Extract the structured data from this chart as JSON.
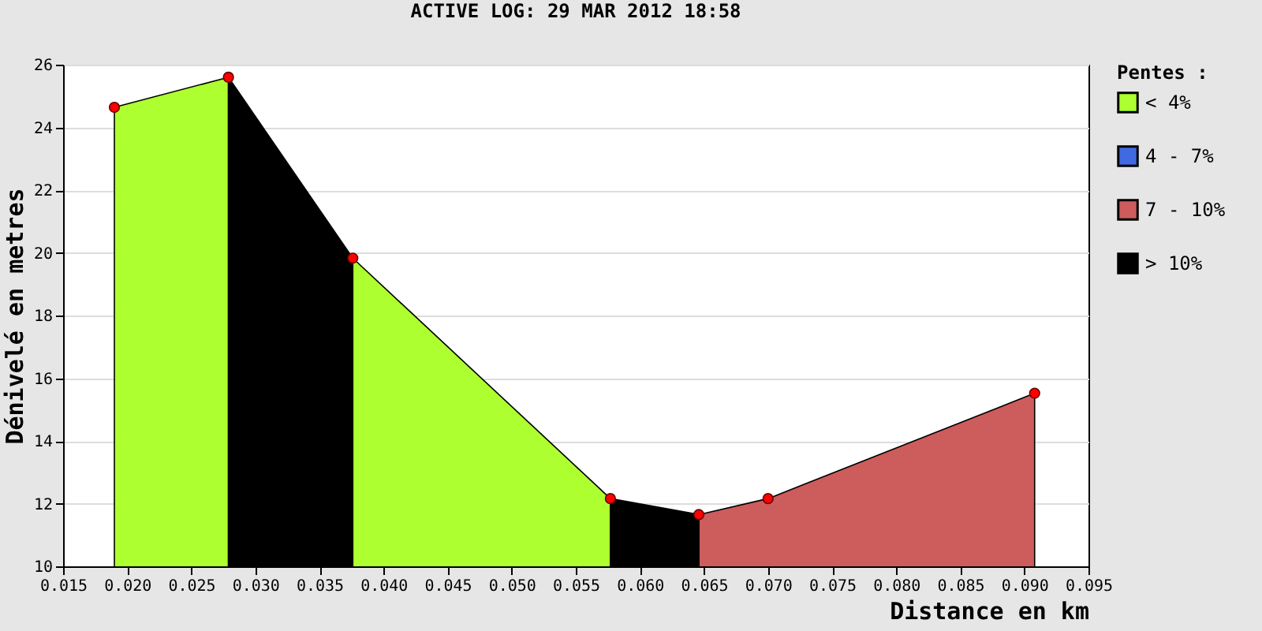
{
  "chart_data": {
    "type": "area",
    "title": "ACTIVE LOG: 29 MAR 2012 18:58",
    "xlabel": "Distance en km",
    "ylabel": "Dénivelé en metres",
    "legend_title": "Pentes :",
    "legend": "right",
    "grid": "y",
    "xlim": [
      0.015,
      0.095
    ],
    "xticks": [
      0.015,
      {
        "value": 0.02,
        "label": "0.020"
      },
      0.025,
      {
        "value": 0.03,
        "label": "0.030"
      },
      0.035,
      {
        "value": 0.04,
        "label": "0.040"
      },
      0.045,
      {
        "value": 0.05,
        "label": "0.050"
      },
      0.055,
      {
        "value": 0.06,
        "label": "0.060"
      },
      0.065,
      {
        "value": 0.07,
        "label": "0.070"
      },
      0.075,
      {
        "value": 0.08,
        "label": "0.080"
      },
      0.085,
      {
        "value": 0.09,
        "label": "0.090"
      },
      0.095
    ],
    "ylim": [
      10,
      26
    ],
    "yticks": [
      10,
      12,
      14,
      16,
      18,
      20,
      22,
      24,
      26
    ],
    "series": [
      {
        "name": "< 4%",
        "color": "#adff2f",
        "type": "area",
        "x": [
          0.019,
          0.0279
        ],
        "values": [
          24.64,
          25.6
        ]
      },
      {
        "color": "#adff2f",
        "type": "area",
        "x": [
          0.0376,
          0.0577
        ],
        "values": [
          19.83,
          12.16
        ]
      },
      {
        "name": "4 - 7%",
        "color": "#4169e1",
        "type": "area"
      },
      {
        "name": "7 - 10%",
        "color": "#cd5c5c",
        "type": "area",
        "x": [
          0.0646,
          0.07,
          0.0908
        ],
        "values": [
          11.65,
          12.16,
          15.52
        ]
      },
      {
        "name": "> 10%",
        "color": "#000000",
        "type": "area",
        "x": [
          0.0279,
          0.0376
        ],
        "values": [
          25.6,
          19.83
        ]
      },
      {
        "color": "#000000",
        "x": [
          0.0577,
          0.0646
        ],
        "values": [
          12.16,
          11.65
        ]
      },
      {
        "color": "#ff0000",
        "type": "scatter",
        "marker": "circle",
        "x": [
          0.019,
          0.0279,
          0.0376,
          0.0577,
          0.0646,
          0.07,
          0.0908
        ],
        "values": [
          24.64,
          25.6,
          19.83,
          12.16,
          11.65,
          12.16,
          15.52
        ]
      }
    ]
  }
}
